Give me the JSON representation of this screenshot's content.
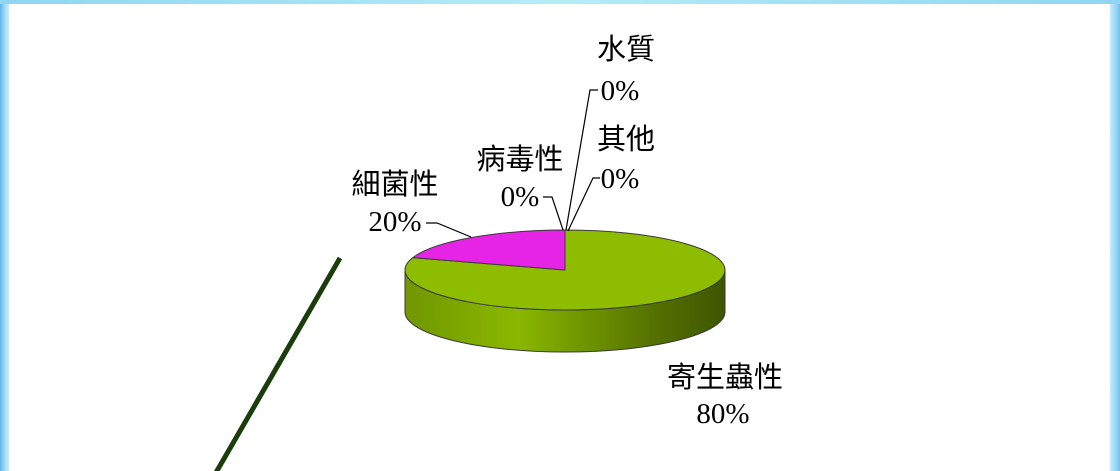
{
  "chart_data": {
    "type": "pie",
    "three_d": true,
    "categories": [
      "寄生蟲性",
      "細菌性",
      "病毒性",
      "其他",
      "水質"
    ],
    "values": [
      80,
      20,
      0,
      0,
      0
    ],
    "unit": "%",
    "colors": [
      "#8dbc00",
      "#e524e6"
    ],
    "legend": "none"
  }
}
